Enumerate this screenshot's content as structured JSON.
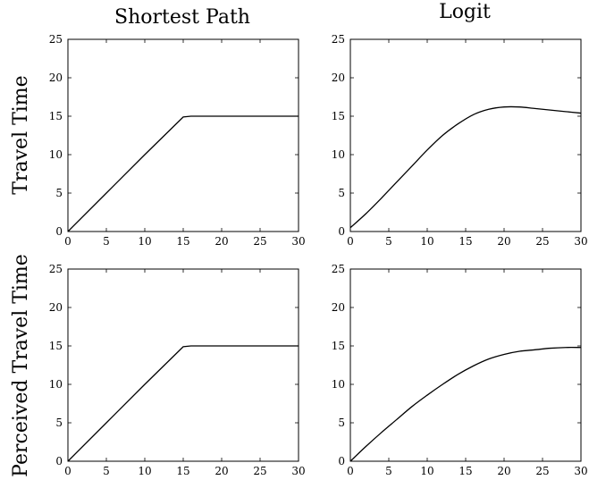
{
  "column_titles": [
    "Shortest Path",
    "Logit"
  ],
  "row_titles": [
    "Travel Time",
    "Perceived Travel Time"
  ],
  "chart_data": [
    {
      "type": "line",
      "column_title": "Shortest Path",
      "row_title": "Travel Time",
      "xlim": [
        0,
        30
      ],
      "ylim": [
        0,
        25
      ],
      "xticks": [
        0,
        5,
        10,
        15,
        20,
        25,
        30
      ],
      "yticks": [
        0,
        5,
        10,
        15,
        20,
        25
      ],
      "grid": false,
      "x": [
        0,
        5,
        10,
        15,
        16,
        20,
        25,
        30
      ],
      "y": [
        0,
        5,
        10,
        14.9,
        15,
        15,
        15,
        15
      ]
    },
    {
      "type": "line",
      "column_title": "Logit",
      "row_title": "Travel Time",
      "xlim": [
        0,
        30
      ],
      "ylim": [
        0,
        25
      ],
      "xticks": [
        0,
        5,
        10,
        15,
        20,
        25,
        30
      ],
      "yticks": [
        0,
        5,
        10,
        15,
        20,
        25
      ],
      "grid": false,
      "x": [
        0,
        2,
        4,
        6,
        8,
        10,
        12,
        14,
        16,
        18,
        20,
        22,
        24,
        26,
        28,
        30
      ],
      "y": [
        0.5,
        2.3,
        4.3,
        6.4,
        8.5,
        10.6,
        12.5,
        14.0,
        15.2,
        15.9,
        16.2,
        16.2,
        16.0,
        15.8,
        15.6,
        15.4
      ]
    },
    {
      "type": "line",
      "column_title": "Shortest Path",
      "row_title": "Perceived Travel Time",
      "xlim": [
        0,
        30
      ],
      "ylim": [
        0,
        25
      ],
      "xticks": [
        0,
        5,
        10,
        15,
        20,
        25,
        30
      ],
      "yticks": [
        0,
        5,
        10,
        15,
        20,
        25
      ],
      "grid": false,
      "x": [
        0,
        5,
        10,
        15,
        16,
        20,
        25,
        30
      ],
      "y": [
        0,
        5,
        10,
        14.9,
        15,
        15,
        15,
        15
      ]
    },
    {
      "type": "line",
      "column_title": "Logit",
      "row_title": "Perceived Travel Time",
      "xlim": [
        0,
        30
      ],
      "ylim": [
        0,
        25
      ],
      "xticks": [
        0,
        5,
        10,
        15,
        20,
        25,
        30
      ],
      "yticks": [
        0,
        5,
        10,
        15,
        20,
        25
      ],
      "grid": false,
      "x": [
        0,
        2,
        4,
        6,
        8,
        10,
        12,
        14,
        16,
        18,
        20,
        22,
        24,
        26,
        28,
        30
      ],
      "y": [
        0,
        1.9,
        3.7,
        5.4,
        7.1,
        8.6,
        10.0,
        11.3,
        12.4,
        13.3,
        13.9,
        14.3,
        14.5,
        14.7,
        14.8,
        14.8
      ]
    }
  ]
}
